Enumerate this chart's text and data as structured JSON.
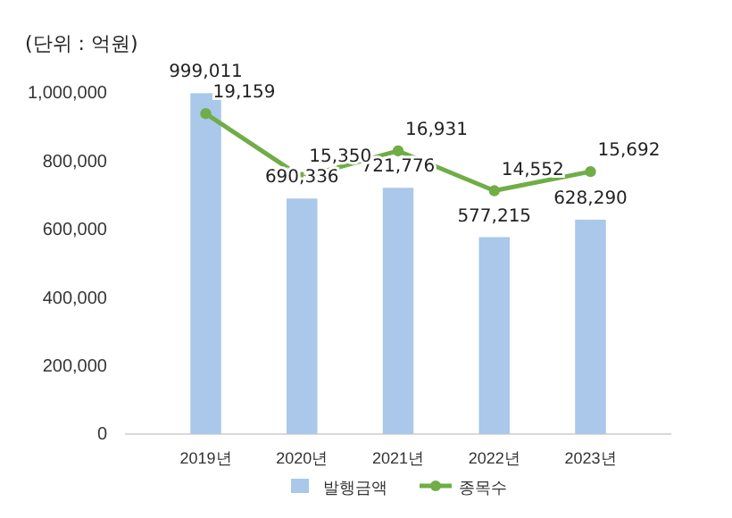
{
  "chart_data": {
    "type": "bar",
    "subtitle": "(단위 : 억원)",
    "categories": [
      "2019년",
      "2020년",
      "2021년",
      "2022년",
      "2023년"
    ],
    "series": [
      {
        "name": "발행금액",
        "color": "#a9c8ea",
        "values": [
          999011,
          690336,
          721776,
          577215,
          628290
        ],
        "value_labels": [
          "999,011",
          "690,336",
          "721,776",
          "577,215",
          "628,290"
        ]
      },
      {
        "name": "종목수",
        "type": "line",
        "axis": "y2",
        "color": "#70ad47",
        "values": [
          19159,
          15350,
          16931,
          14552,
          15692
        ],
        "value_labels": [
          "19,159",
          "15,350",
          "16,931",
          "14,552",
          "15,692"
        ]
      }
    ],
    "ylim": [
      0,
      1000000
    ],
    "yticks": [
      {
        "value": 0,
        "label": "0"
      },
      {
        "value": 200000,
        "label": "200,000"
      },
      {
        "value": 400000,
        "label": "400,000"
      },
      {
        "value": 600000,
        "label": "600,000"
      },
      {
        "value": 800000,
        "label": "800,000"
      },
      {
        "value": 1000000,
        "label": "1,000,000"
      }
    ],
    "y2lim": [
      0,
      20400
    ],
    "marker": "circle",
    "legend": "bottom",
    "grid": false
  }
}
